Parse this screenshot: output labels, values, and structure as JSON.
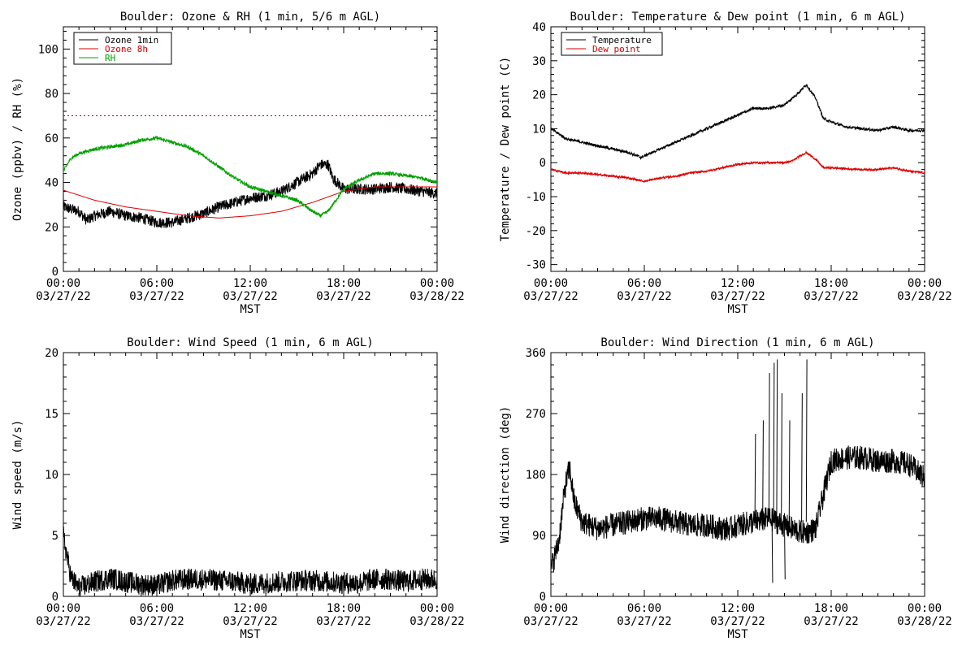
{
  "chart_data": [
    {
      "id": "ozone",
      "type": "line",
      "title": "Boulder: Ozone & RH (1 min, 5/6 m AGL)",
      "xlabel": "MST",
      "ylabel": "Ozone (ppbv) / RH (%)",
      "xlim": [
        0,
        24
      ],
      "ylim": [
        0,
        110
      ],
      "yticks": [
        0,
        20,
        40,
        60,
        80,
        100
      ],
      "legend": "top-left",
      "reference_line": {
        "y": 70,
        "color": "#dd0000",
        "style": "dotted"
      },
      "series": [
        {
          "name": "Ozone 1min",
          "color": "#000000",
          "noise": 2.5,
          "x": [
            0,
            1,
            1.5,
            2,
            3,
            4,
            5,
            6,
            7,
            8,
            9,
            10,
            11,
            12,
            13,
            14,
            15,
            16,
            16.5,
            17,
            17.3,
            18,
            19,
            20,
            21,
            22,
            23,
            24
          ],
          "y": [
            29,
            27,
            23,
            25,
            27,
            25,
            24,
            22,
            22,
            24,
            26,
            29,
            31,
            33,
            34,
            36,
            40,
            44,
            48,
            48,
            42,
            37,
            37,
            37,
            38,
            37,
            36,
            35
          ]
        },
        {
          "name": "Ozone 8h",
          "color": "#dd0000",
          "noise": 0,
          "x": [
            0,
            2,
            4,
            6,
            8,
            10,
            12,
            14,
            16,
            18,
            20,
            22,
            24
          ],
          "y": [
            36.5,
            32,
            29,
            27,
            25,
            24,
            25,
            27,
            31,
            36,
            38,
            38,
            38
          ]
        },
        {
          "name": "RH",
          "color": "#00a000",
          "noise": 0.8,
          "x": [
            0,
            0.5,
            1,
            2,
            3,
            4,
            5,
            6,
            7,
            8,
            9,
            10,
            11,
            12,
            13,
            14,
            15,
            16,
            16.5,
            17,
            18,
            19,
            20,
            21,
            22,
            23,
            24
          ],
          "y": [
            45,
            51,
            53,
            55,
            56,
            57,
            59,
            60,
            58,
            56,
            52,
            47,
            42,
            38,
            36,
            34,
            32,
            27,
            25,
            27,
            37,
            41,
            44,
            44,
            43,
            42,
            40
          ]
        }
      ]
    },
    {
      "id": "temp",
      "type": "line",
      "title": "Boulder: Temperature & Dew point (1 min, 6 m AGL)",
      "xlabel": "MST",
      "ylabel": "Temperature / Dew point (C)",
      "xlim": [
        0,
        24
      ],
      "ylim": [
        -32,
        40
      ],
      "yticks": [
        -30,
        -20,
        -10,
        0,
        10,
        20,
        30,
        40
      ],
      "legend": "top-left",
      "series": [
        {
          "name": "Temperature",
          "color": "#000000",
          "noise": 0.4,
          "x": [
            0,
            1,
            2,
            3,
            4,
            5,
            5.8,
            6,
            7,
            8,
            9,
            10,
            11,
            12,
            13,
            14,
            15,
            15.5,
            16,
            16.4,
            17,
            17.5,
            18,
            19,
            20,
            21,
            22,
            23,
            24
          ],
          "y": [
            10,
            7,
            6,
            5,
            4,
            3,
            1.5,
            2,
            4,
            6,
            8,
            10,
            12,
            14,
            16,
            16,
            17,
            19,
            21,
            23,
            19,
            13,
            12,
            10.5,
            10,
            9.5,
            10.5,
            9.5,
            9.5
          ]
        },
        {
          "name": "Dew point",
          "color": "#dd0000",
          "noise": 0.3,
          "x": [
            0,
            1,
            2,
            3,
            4,
            5,
            6,
            7,
            8,
            9,
            10,
            11,
            12,
            13,
            14,
            15,
            15.5,
            16,
            16.4,
            17,
            17.5,
            18,
            19,
            20,
            21,
            22,
            23,
            24
          ],
          "y": [
            -2,
            -3,
            -3,
            -3.5,
            -4,
            -4.5,
            -5.5,
            -4.5,
            -4,
            -3,
            -2.5,
            -1.5,
            -0.5,
            0,
            0,
            0,
            0.5,
            2,
            3,
            1,
            -1.5,
            -1.5,
            -1.8,
            -2,
            -2,
            -1.5,
            -2.5,
            -3
          ]
        }
      ]
    },
    {
      "id": "wspd",
      "type": "line",
      "title": "Boulder: Wind Speed (1 min, 6 m AGL)",
      "xlabel": "MST",
      "ylabel": "Wind speed (m/s)",
      "xlim": [
        0,
        24
      ],
      "ylim": [
        0,
        20
      ],
      "yticks": [
        0,
        5,
        10,
        15,
        20
      ],
      "series": [
        {
          "name": "",
          "color": "#000000",
          "noise": 0.9,
          "x": [
            0,
            0.2,
            0.5,
            1,
            2,
            3,
            4,
            5,
            6,
            7,
            8,
            9,
            10,
            11,
            12,
            13,
            14,
            15,
            16,
            17,
            18,
            19,
            20,
            21,
            22,
            23,
            24
          ],
          "y": [
            5,
            3.5,
            1.5,
            0.7,
            1.2,
            1.5,
            1.2,
            1.0,
            0.9,
            1.3,
            1.4,
            1.4,
            1.3,
            1.2,
            1.0,
            1.1,
            1.2,
            1.3,
            1.3,
            1.2,
            1.1,
            1.1,
            1.4,
            1.4,
            1.2,
            1.4,
            1.4
          ]
        }
      ]
    },
    {
      "id": "wdir",
      "type": "line",
      "title": "Boulder: Wind Direction (1 min, 6 m AGL)",
      "xlabel": "MST",
      "ylabel": "Wind direction (deg)",
      "xlim": [
        0,
        24
      ],
      "ylim": [
        0,
        360
      ],
      "yticks": [
        0,
        90,
        180,
        270,
        360
      ],
      "series": [
        {
          "name": "",
          "color": "#000000",
          "noise": 18,
          "x": [
            0,
            0.5,
            0.9,
            1.2,
            1.5,
            2,
            3,
            4,
            5,
            6,
            7,
            8,
            9,
            10,
            11,
            11.5,
            12,
            13,
            14,
            14.5,
            15,
            16,
            16.5,
            17,
            17.5,
            18,
            19,
            20,
            21,
            22,
            23,
            24
          ],
          "y": [
            40,
            80,
            160,
            190,
            140,
            110,
            100,
            105,
            110,
            115,
            115,
            110,
            105,
            105,
            100,
            100,
            105,
            110,
            115,
            110,
            105,
            95,
            95,
            100,
            150,
            200,
            205,
            205,
            200,
            200,
            195,
            175
          ]
        }
      ]
    }
  ],
  "x_tick_labels": [
    {
      "time": "00:00",
      "date": "03/27/22"
    },
    {
      "time": "06:00",
      "date": "03/27/22"
    },
    {
      "time": "12:00",
      "date": "03/27/22"
    },
    {
      "time": "18:00",
      "date": "03/27/22"
    },
    {
      "time": "00:00",
      "date": "03/28/22"
    }
  ],
  "x_tick_hours": [
    0,
    6,
    12,
    18,
    24
  ]
}
